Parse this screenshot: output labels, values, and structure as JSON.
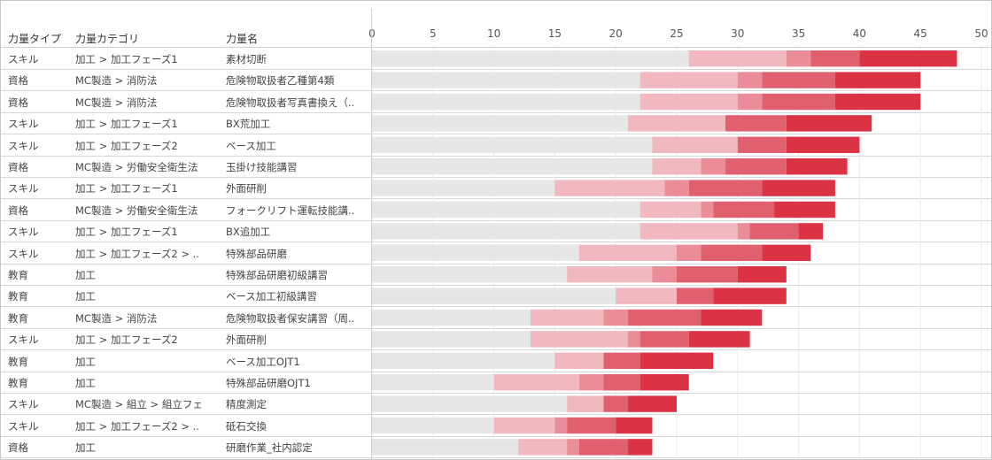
{
  "table": {
    "headers": [
      "力量タイプ",
      "力量カテゴリ",
      "力量名"
    ]
  },
  "chart_data": {
    "type": "bar",
    "orientation": "horizontal",
    "stacked": true,
    "xlim": [
      0,
      50
    ],
    "xticks": [
      "0",
      "5",
      "10",
      "15",
      "20",
      "25",
      "30",
      "35",
      "40",
      "45",
      "50"
    ],
    "grid": true,
    "segment_colors": [
      "#e6e6e6",
      "#f2b8c0",
      "#ea8d98",
      "#e0606f",
      "#db3244"
    ],
    "rows": [
      {
        "type": "スキル",
        "category": "加工 > 加工フェーズ1",
        "name": "素材切断",
        "segments": [
          26,
          8,
          2,
          4,
          8
        ]
      },
      {
        "type": "資格",
        "category": "MC製造 > 消防法",
        "name": "危険物取扱者乙種第4類",
        "segments": [
          22,
          8,
          2,
          6,
          7
        ]
      },
      {
        "type": "資格",
        "category": "MC製造 > 消防法",
        "name": "危険物取扱者写真書換え（..",
        "segments": [
          22,
          8,
          2,
          6,
          7
        ]
      },
      {
        "type": "スキル",
        "category": "加工 > 加工フェーズ1",
        "name": "BX荒加工",
        "segments": [
          21,
          8,
          0,
          5,
          7
        ]
      },
      {
        "type": "スキル",
        "category": "加工 > 加工フェーズ2",
        "name": "ベース加工",
        "segments": [
          23,
          7,
          0,
          4,
          6
        ]
      },
      {
        "type": "資格",
        "category": "MC製造 > 労働安全衛生法",
        "name": "玉掛け技能講習",
        "segments": [
          23,
          4,
          2,
          5,
          5
        ]
      },
      {
        "type": "スキル",
        "category": "加工 > 加工フェーズ1",
        "name": "外面研削",
        "segments": [
          15,
          9,
          2,
          6,
          6
        ]
      },
      {
        "type": "資格",
        "category": "MC製造 > 労働安全衛生法",
        "name": "フォークリフト運転技能講..",
        "segments": [
          22,
          5,
          1,
          5,
          5
        ]
      },
      {
        "type": "スキル",
        "category": "加工 > 加工フェーズ1",
        "name": "BX追加工",
        "segments": [
          22,
          8,
          1,
          4,
          2
        ]
      },
      {
        "type": "スキル",
        "category": "加工 > 加工フェーズ2 > ..",
        "name": "特殊部品研磨",
        "segments": [
          17,
          8,
          2,
          5,
          4
        ]
      },
      {
        "type": "教育",
        "category": "加工",
        "name": "特殊部品研磨初級講習",
        "segments": [
          16,
          7,
          2,
          5,
          4
        ]
      },
      {
        "type": "教育",
        "category": "加工",
        "name": "ベース加工初級講習",
        "segments": [
          20,
          5,
          0,
          3,
          6
        ]
      },
      {
        "type": "教育",
        "category": "MC製造 > 消防法",
        "name": "危険物取扱者保安講習（周..",
        "segments": [
          13,
          6,
          2,
          6,
          5
        ]
      },
      {
        "type": "スキル",
        "category": "加工 > 加工フェーズ2",
        "name": "外面研削",
        "segments": [
          13,
          8,
          1,
          4,
          5
        ]
      },
      {
        "type": "教育",
        "category": "加工",
        "name": "ベース加工OJT1",
        "segments": [
          15,
          4,
          0,
          3,
          6
        ]
      },
      {
        "type": "教育",
        "category": "加工",
        "name": "特殊部品研磨OJT1",
        "segments": [
          10,
          7,
          2,
          3,
          4
        ]
      },
      {
        "type": "スキル",
        "category": "MC製造 > 組立 > 組立フェ",
        "name": "精度測定",
        "segments": [
          16,
          3,
          0,
          2,
          4
        ]
      },
      {
        "type": "スキル",
        "category": "加工 > 加工フェーズ2 > ..",
        "name": "砥石交換",
        "segments": [
          10,
          5,
          1,
          4,
          3
        ]
      },
      {
        "type": "資格",
        "category": "加工",
        "name": "研磨作業_社内認定",
        "segments": [
          12,
          4,
          1,
          4,
          2
        ]
      }
    ]
  }
}
